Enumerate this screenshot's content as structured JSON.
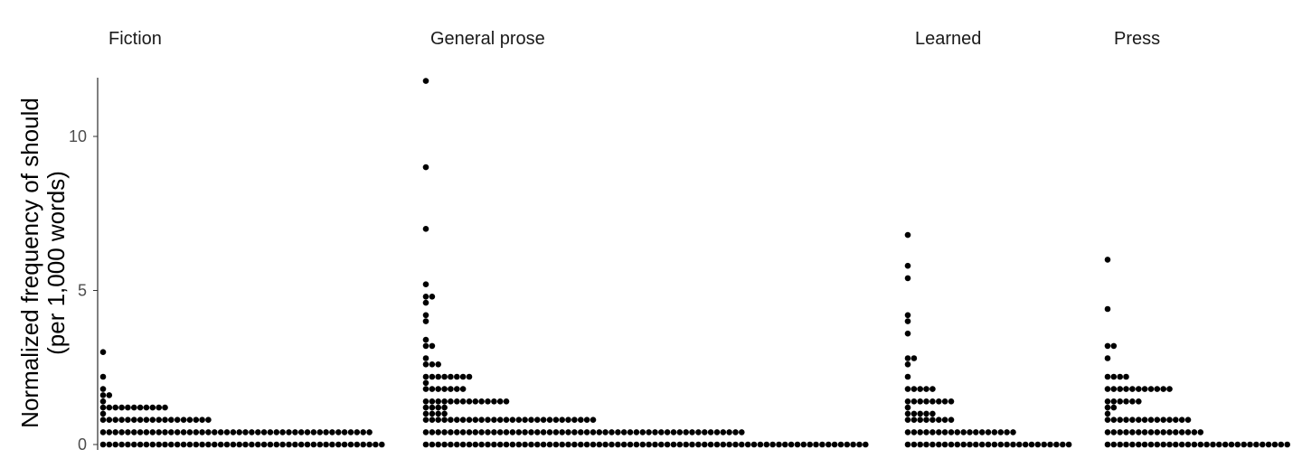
{
  "chart_data": {
    "type": "dotplot",
    "ylabel_line1": "Normalized frequency of should",
    "ylabel_line2": "(per 1,000 words)",
    "ylim": [
      0,
      12
    ],
    "yticks": [
      0,
      5,
      10
    ],
    "ytick_labels": [
      "0",
      "5",
      "10"
    ],
    "grid": false,
    "dot_color": "#000000",
    "facets": [
      {
        "title": "Fiction",
        "stacks": [
          {
            "y": 0,
            "count": 46
          },
          {
            "y": 0.4,
            "count": 44
          },
          {
            "y": 0.8,
            "count": 18
          },
          {
            "y": 1.0,
            "count": 1
          },
          {
            "y": 1.2,
            "count": 11
          },
          {
            "y": 1.4,
            "count": 1
          },
          {
            "y": 1.6,
            "count": 2
          },
          {
            "y": 1.8,
            "count": 1
          },
          {
            "y": 2.2,
            "count": 1
          },
          {
            "y": 3.0,
            "count": 1
          }
        ]
      },
      {
        "title": "General prose",
        "stacks": [
          {
            "y": 0,
            "count": 72
          },
          {
            "y": 0.4,
            "count": 52
          },
          {
            "y": 0.8,
            "count": 28
          },
          {
            "y": 1.0,
            "count": 4
          },
          {
            "y": 1.2,
            "count": 4
          },
          {
            "y": 1.4,
            "count": 14
          },
          {
            "y": 1.8,
            "count": 7
          },
          {
            "y": 2.0,
            "count": 1
          },
          {
            "y": 2.2,
            "count": 8
          },
          {
            "y": 2.6,
            "count": 3
          },
          {
            "y": 2.8,
            "count": 1
          },
          {
            "y": 3.2,
            "count": 2
          },
          {
            "y": 3.4,
            "count": 1
          },
          {
            "y": 4.0,
            "count": 1
          },
          {
            "y": 4.2,
            "count": 1
          },
          {
            "y": 4.6,
            "count": 1
          },
          {
            "y": 4.8,
            "count": 2
          },
          {
            "y": 5.2,
            "count": 1
          },
          {
            "y": 7.0,
            "count": 1
          },
          {
            "y": 9.0,
            "count": 1
          },
          {
            "y": 11.8,
            "count": 1
          }
        ]
      },
      {
        "title": "Learned",
        "stacks": [
          {
            "y": 0,
            "count": 27
          },
          {
            "y": 0.4,
            "count": 18
          },
          {
            "y": 0.8,
            "count": 8
          },
          {
            "y": 1.0,
            "count": 5
          },
          {
            "y": 1.2,
            "count": 1
          },
          {
            "y": 1.4,
            "count": 8
          },
          {
            "y": 1.8,
            "count": 5
          },
          {
            "y": 2.2,
            "count": 1
          },
          {
            "y": 2.6,
            "count": 1
          },
          {
            "y": 2.8,
            "count": 2
          },
          {
            "y": 3.6,
            "count": 1
          },
          {
            "y": 4.0,
            "count": 1
          },
          {
            "y": 4.2,
            "count": 1
          },
          {
            "y": 5.4,
            "count": 1
          },
          {
            "y": 5.8,
            "count": 1
          },
          {
            "y": 6.8,
            "count": 1
          }
        ]
      },
      {
        "title": "Press",
        "stacks": [
          {
            "y": 0,
            "count": 30
          },
          {
            "y": 0.4,
            "count": 16
          },
          {
            "y": 0.8,
            "count": 14
          },
          {
            "y": 1.0,
            "count": 1
          },
          {
            "y": 1.2,
            "count": 2
          },
          {
            "y": 1.4,
            "count": 6
          },
          {
            "y": 1.8,
            "count": 11
          },
          {
            "y": 2.2,
            "count": 4
          },
          {
            "y": 2.8,
            "count": 1
          },
          {
            "y": 3.2,
            "count": 2
          },
          {
            "y": 4.4,
            "count": 1
          },
          {
            "y": 6.0,
            "count": 1
          }
        ]
      }
    ]
  }
}
